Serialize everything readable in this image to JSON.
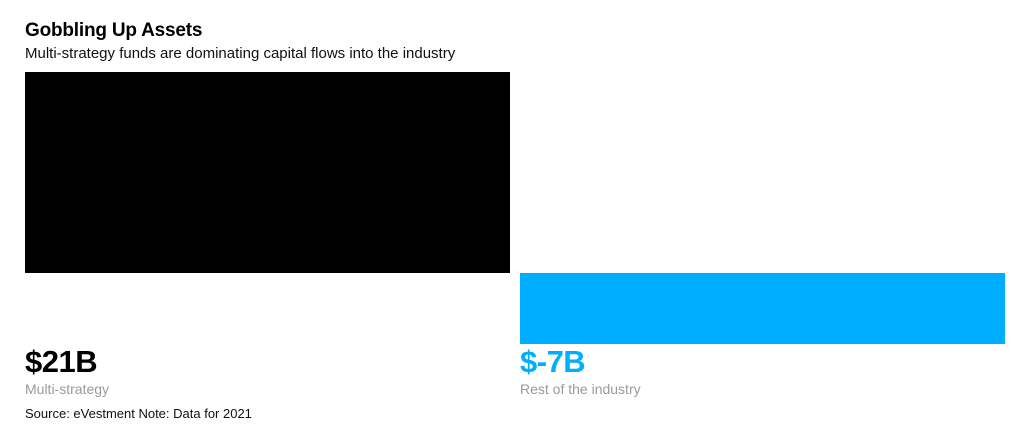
{
  "header": {
    "title": "Gobbling Up Assets",
    "subtitle": "Multi-strategy funds are dominating capital flows into the industry"
  },
  "bars": [
    {
      "value_label": "$21B",
      "category": "Multi-strategy",
      "color": "#000000"
    },
    {
      "value_label": "$-7B",
      "category": "Rest of the industry",
      "color": "#00AEFF"
    }
  ],
  "footer": {
    "source": "Source: eVestment Note: Data for 2021"
  },
  "chart_data": {
    "type": "bar",
    "title": "Gobbling Up Assets",
    "subtitle": "Multi-strategy funds are dominating capital flows into the industry",
    "categories": [
      "Multi-strategy",
      "Rest of the industry"
    ],
    "values": [
      21,
      -7
    ],
    "unit": "USD billions",
    "value_labels": [
      "$21B",
      "$-7B"
    ],
    "colors": [
      "#000000",
      "#00AEFF"
    ],
    "xlabel": "",
    "ylabel": "",
    "ylim": [
      -7,
      21
    ],
    "grid": false,
    "legend": "none (direct labels beneath bars)",
    "source": "Source: eVestment Note: Data for 2021"
  }
}
